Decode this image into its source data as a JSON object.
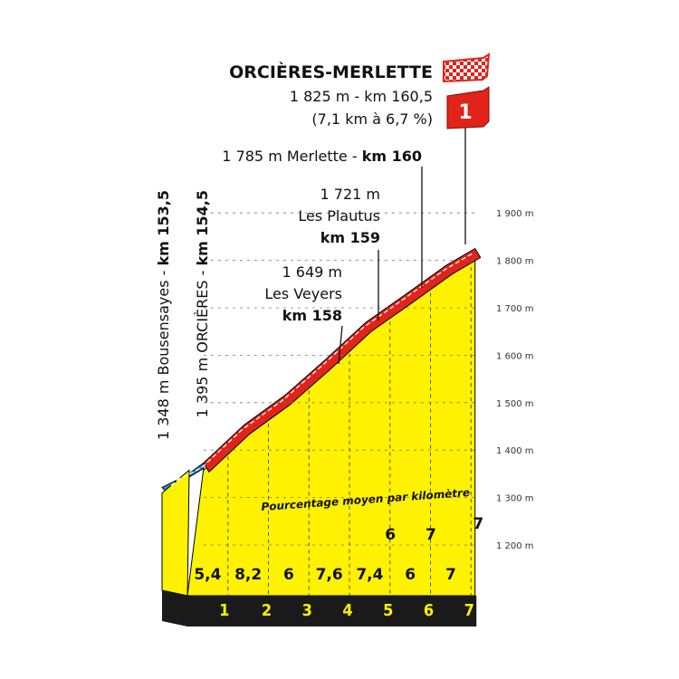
{
  "chart_data": {
    "type": "area",
    "title": "ORCIÈRES-MERLETTE",
    "summit": {
      "line1": "1 825 m - km 160,5",
      "line2": "(7,1 km à 6,7 %)",
      "category": "1",
      "finish_flag": "checkered-flag-icon",
      "altitude": 1825,
      "km": 160.5
    },
    "annotations": [
      {
        "id": "bousensayes",
        "text_plain": "1 348 m Bousensayes - ",
        "text_bold": "km 153,5",
        "km": 153.5,
        "altitude": 1348
      },
      {
        "id": "orcieres",
        "text_plain": "1 395 m ORCIÈRES - ",
        "text_bold": "km 154,5",
        "km": 154.5,
        "altitude": 1395
      },
      {
        "id": "veyers",
        "alt_text": "1 649 m",
        "name": "Les Veyers",
        "km_text": "km 158",
        "km": 158,
        "altitude": 1649
      },
      {
        "id": "plautus",
        "alt_text": "1 721 m",
        "name": "Les Plautus",
        "km_text": "km 159",
        "km": 159,
        "altitude": 1721
      },
      {
        "id": "merlette",
        "text_plain": "1 785 m Merlette - ",
        "text_bold": "km 160",
        "km": 160,
        "altitude": 1785
      }
    ],
    "y_axis": {
      "ticks": [
        {
          "value": 1200,
          "label": "1 200 m"
        },
        {
          "value": 1300,
          "label": "1 300 m"
        },
        {
          "value": 1400,
          "label": "1 400 m"
        },
        {
          "value": 1500,
          "label": "1 500 m"
        },
        {
          "value": 1600,
          "label": "1 600 m"
        },
        {
          "value": 1700,
          "label": "1 700 m"
        },
        {
          "value": 1800,
          "label": "1 800 m"
        },
        {
          "value": 1900,
          "label": "1 900 m"
        }
      ],
      "ylim": [
        1200,
        1900
      ]
    },
    "gradient_caption": "Pourcentage moyen par kilomètre",
    "kilometer_markers": [
      "1",
      "2",
      "3",
      "4",
      "5",
      "6",
      "7"
    ],
    "segment_percentages": [
      "5,4",
      "8,2",
      "6",
      "7,6",
      "7,4",
      "6",
      "7"
    ],
    "last_segment_percentage": "7",
    "profile_km": [
      0,
      0.4,
      1.4,
      2.4,
      3.4,
      4.4,
      5.4,
      6.4,
      7.1
    ],
    "profile_altitude": [
      1348,
      1373,
      1453,
      1515,
      1590,
      1669,
      1729,
      1790,
      1825
    ],
    "colors": {
      "climb_fill": "#fff200",
      "climb_line": "#e2231a",
      "approach_fill": "#2f8fcf",
      "base_band": "#1a1a1a",
      "category_badge": "#e2231a"
    }
  }
}
